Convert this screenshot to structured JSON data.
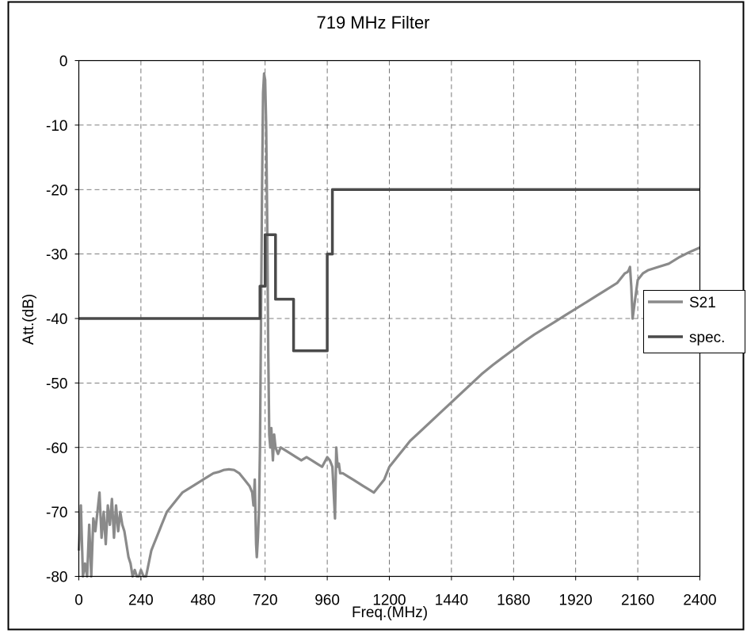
{
  "chart_data": {
    "type": "line",
    "title": "719 MHz Filter",
    "xlabel": "Freq.(MHz)",
    "ylabel": "Att.(dB)",
    "xlim": [
      0,
      2400
    ],
    "ylim": [
      -80,
      0
    ],
    "x_ticks": [
      0,
      240,
      480,
      720,
      960,
      1200,
      1440,
      1680,
      1920,
      2160,
      2400
    ],
    "x_tick_labels": [
      "0",
      "240",
      "480",
      "720",
      "960",
      "1200",
      "1440",
      "1680",
      "1920",
      "2160",
      "2400"
    ],
    "y_ticks": [
      0,
      -10,
      -20,
      -30,
      -40,
      -50,
      -60,
      -70,
      -80
    ],
    "y_tick_labels": [
      "0",
      "-10",
      "-20",
      "-30",
      "-40",
      "-50",
      "-60",
      "-70",
      "-80"
    ],
    "grid": true,
    "grid_style": "dashed",
    "legend_position": "right",
    "series": [
      {
        "name": "S21",
        "color": "#8a8a8a",
        "x": [
          0,
          8,
          16,
          24,
          32,
          40,
          48,
          56,
          64,
          72,
          80,
          88,
          96,
          104,
          112,
          120,
          128,
          136,
          144,
          152,
          160,
          168,
          176,
          184,
          192,
          200,
          208,
          216,
          224,
          232,
          240,
          250,
          260,
          270,
          280,
          290,
          300,
          310,
          320,
          330,
          340,
          350,
          360,
          380,
          400,
          420,
          440,
          460,
          480,
          500,
          520,
          540,
          560,
          580,
          600,
          620,
          640,
          660,
          670,
          675,
          680,
          685,
          688,
          692,
          696,
          700,
          704,
          708,
          712,
          716,
          718,
          720,
          724,
          728,
          732,
          736,
          740,
          744,
          750,
          755,
          760,
          770,
          780,
          800,
          820,
          840,
          860,
          880,
          900,
          920,
          940,
          960,
          970,
          980,
          990,
          995,
          1000,
          1005,
          1010,
          1020,
          1040,
          1060,
          1080,
          1100,
          1120,
          1140,
          1160,
          1180,
          1200,
          1240,
          1280,
          1320,
          1360,
          1400,
          1440,
          1480,
          1520,
          1560,
          1600,
          1640,
          1680,
          1720,
          1760,
          1800,
          1840,
          1880,
          1920,
          1960,
          2000,
          2040,
          2080,
          2100,
          2110,
          2120,
          2125,
          2130,
          2135,
          2140,
          2150,
          2160,
          2180,
          2200,
          2240,
          2280,
          2320,
          2360,
          2400
        ],
        "values": [
          -76,
          -69,
          -80,
          -78,
          -80,
          -72,
          -80,
          -71,
          -73,
          -70,
          -67,
          -74,
          -70,
          -75,
          -69,
          -72,
          -68,
          -74,
          -69,
          -73,
          -70,
          -72,
          -73,
          -75,
          -77,
          -78,
          -80,
          -79,
          -80,
          -80,
          -79,
          -80,
          -80,
          -78,
          -76,
          -75,
          -74,
          -73,
          -72,
          -71,
          -70,
          -69.5,
          -69,
          -68,
          -67,
          -66.5,
          -66,
          -65.5,
          -65,
          -64.5,
          -64,
          -63.8,
          -63.5,
          -63.4,
          -63.5,
          -64,
          -65,
          -66,
          -67,
          -69,
          -65,
          -75,
          -77,
          -74,
          -70,
          -60,
          -40,
          -20,
          -5,
          -2,
          -2.5,
          -3,
          -10,
          -25,
          -45,
          -58,
          -60,
          -57,
          -62,
          -58,
          -60,
          -61,
          -60,
          -60.5,
          -61,
          -61.5,
          -62,
          -61.5,
          -62,
          -62.5,
          -63,
          -61.5,
          -62,
          -63,
          -71,
          -60,
          -63,
          -62.5,
          -64,
          -64,
          -64.5,
          -65,
          -65.5,
          -66,
          -66.5,
          -67,
          -66,
          -65,
          -63,
          -61,
          -59,
          -57.5,
          -56,
          -54.5,
          -53,
          -51.5,
          -50,
          -48.5,
          -47.2,
          -46,
          -44.8,
          -43.6,
          -42.5,
          -41.5,
          -40.5,
          -39.5,
          -38.5,
          -37.5,
          -36.5,
          -35.5,
          -34.5,
          -33.5,
          -33,
          -32.8,
          -32.5,
          -32,
          -35,
          -40,
          -37,
          -34,
          -33,
          -32.5,
          -32,
          -31.5,
          -30.5,
          -29.7,
          -29
        ]
      },
      {
        "name": "spec.",
        "color": "#4a4a4a",
        "x": [
          0,
          700,
          700,
          720,
          720,
          760,
          760,
          830,
          830,
          960,
          960,
          980,
          980,
          2400
        ],
        "values": [
          -40,
          -40,
          -35,
          -35,
          -27,
          -27,
          -37,
          -37,
          -45,
          -45,
          -30,
          -30,
          -20,
          -20
        ]
      }
    ]
  }
}
